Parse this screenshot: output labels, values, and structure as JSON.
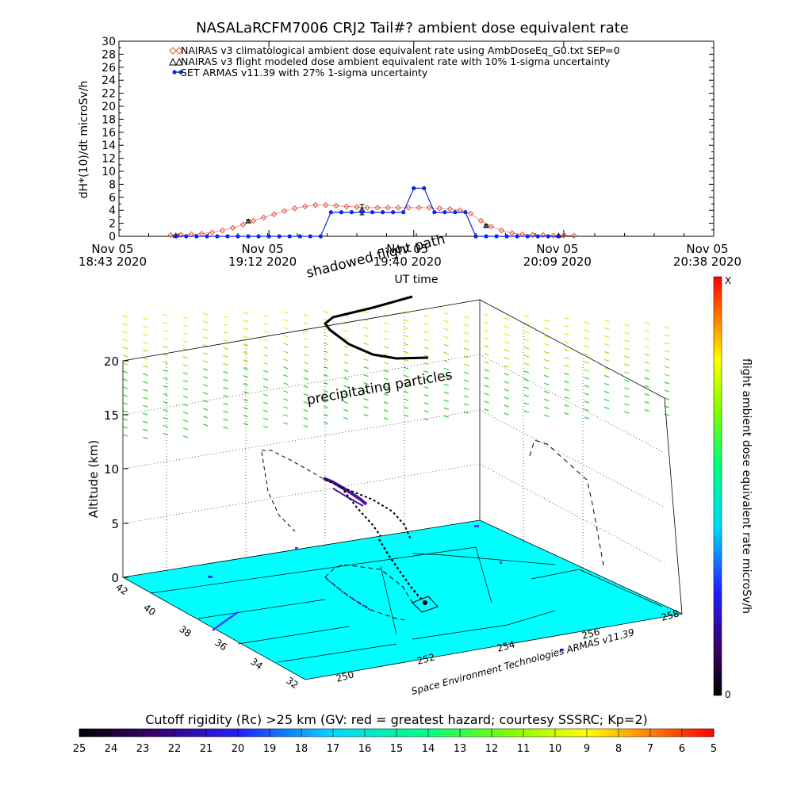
{
  "chart_data": [
    {
      "type": "line",
      "title": "NASALaRCFM7006  CRJ2 Tail#? ambient dose equivalent rate",
      "ylabel": "dH*(10)/dt microSv/h",
      "xlabel": "UT time",
      "ylim": [
        0,
        30
      ],
      "yticks": [
        0,
        2,
        4,
        6,
        8,
        10,
        12,
        14,
        16,
        18,
        20,
        22,
        24,
        26,
        28,
        30
      ],
      "xlim_minutes": [
        0,
        115
      ],
      "xticks": [
        {
          "minute": 0,
          "line1": "Nov 05",
          "line2": "18:43 2020"
        },
        {
          "minute": 29,
          "line1": "Nov 05",
          "line2": "19:12 2020"
        },
        {
          "minute": 57,
          "line1": "Nov 05",
          "line2": "19:40 2020"
        },
        {
          "minute": 86,
          "line1": "Nov 05",
          "line2": "20:09 2020"
        },
        {
          "minute": 115,
          "line1": "Nov 05",
          "line2": "20:38 2020"
        }
      ],
      "legend_position": "top-left",
      "series": [
        {
          "name": "NAIRAS v3 climatological ambient dose equivalent rate using AmbDoseEq_G0.txt SEP=0",
          "color": "#e05040",
          "marker": "diamond",
          "x": [
            10,
            12,
            14,
            16,
            18,
            20,
            22,
            24,
            26,
            28,
            30,
            32,
            34,
            36,
            38,
            40,
            42,
            44,
            46,
            48,
            50,
            52,
            54,
            56,
            58,
            60,
            62,
            64,
            66,
            68,
            70,
            72,
            74,
            76,
            78,
            80,
            82,
            84,
            86,
            88
          ],
          "values": [
            0.2,
            0.2,
            0.3,
            0.4,
            0.6,
            0.9,
            1.3,
            1.8,
            2.4,
            2.9,
            3.4,
            3.9,
            4.3,
            4.6,
            4.8,
            4.8,
            4.7,
            4.6,
            4.5,
            4.4,
            4.4,
            4.4,
            4.4,
            4.4,
            4.4,
            4.4,
            4.3,
            4.2,
            4.0,
            3.5,
            2.4,
            1.5,
            0.9,
            0.5,
            0.3,
            0.2,
            0.2,
            0.1,
            0.1,
            0.1
          ]
        },
        {
          "name": "NAIRAS v3 flight modeled dose ambient equivalent rate with 10% 1-sigma uncertainty",
          "color": "#000000",
          "marker": "triangle",
          "x": [
            11,
            25,
            47,
            71,
            85
          ],
          "values": [
            0.1,
            2.3,
            4.1,
            1.6,
            0.1
          ],
          "errors": [
            0.02,
            0.23,
            0.8,
            0.16,
            0.02
          ]
        },
        {
          "name": "SET ARMAS v11.39 with 27% 1-sigma uncertainty",
          "color": "#0a28e0",
          "marker": "dot",
          "x": [
            11,
            13,
            15,
            17,
            19,
            21,
            23,
            25,
            27,
            29,
            31,
            33,
            35,
            37,
            39,
            41,
            43,
            45,
            47,
            49,
            51,
            53,
            55,
            57,
            59,
            61,
            63,
            65,
            67,
            69,
            71,
            73,
            75,
            77,
            79,
            81,
            83,
            85
          ],
          "values": [
            0,
            0,
            0,
            0,
            0,
            0,
            0,
            0,
            0,
            0,
            0,
            0,
            0,
            0,
            0,
            3.7,
            3.7,
            3.7,
            3.7,
            3.7,
            3.7,
            3.7,
            3.7,
            7.4,
            7.4,
            3.7,
            3.7,
            3.7,
            3.7,
            0,
            0,
            0,
            0,
            0,
            0,
            0,
            0,
            0
          ]
        }
      ]
    },
    {
      "type": "scatter",
      "zlabel": "Altitude (km)",
      "zlim": [
        0,
        20
      ],
      "zticks": [
        "0",
        "5",
        "10",
        "15",
        "20"
      ],
      "lat_ticks": [
        "42",
        "40",
        "38",
        "36",
        "34",
        "32"
      ],
      "lon_ticks": [
        "250",
        "252",
        "254",
        "256",
        "258"
      ],
      "annotations": [
        "shadowed flight path",
        "precipitating particles"
      ],
      "credit": "Space Environment Technologies ARMAS v11.39",
      "colorbar": {
        "label": "flight ambient dose equivalent rate microSv/h",
        "top_label": "X",
        "bottom_label": "0"
      },
      "surface_color": "#00ffff"
    },
    {
      "type": "heatmap",
      "title": "Cutoff rigidity (Rc) >25 km (GV: red = greatest hazard; courtesy SSSRC; Kp=2)",
      "ticks": [
        "25",
        "24",
        "23",
        "22",
        "21",
        "20",
        "19",
        "18",
        "17",
        "16",
        "15",
        "14",
        "13",
        "12",
        "11",
        "10",
        "9",
        "8",
        "7",
        "6",
        "5"
      ]
    }
  ]
}
